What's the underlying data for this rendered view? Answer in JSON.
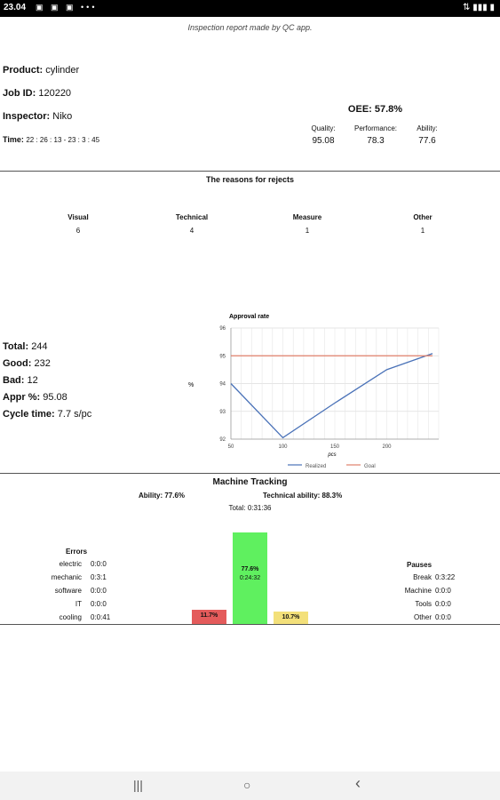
{
  "status": {
    "time": "23.04",
    "icons": "▣ ▣ ▣ •••"
  },
  "header": {
    "subtitle": "Inspection report made by QC app."
  },
  "info": [
    {
      "label": "Product:",
      "value": "cylinder"
    },
    {
      "label": "Job ID:",
      "value": "120220"
    },
    {
      "label": "Inspector:",
      "value": "Niko"
    },
    {
      "label": "Time:",
      "value": "22 : 26 : 13  -  23 : 3 : 45"
    }
  ],
  "oee": {
    "title": "OEE: 57.8%",
    "items": [
      {
        "label": "Quality:",
        "value": "95.08"
      },
      {
        "label": "Performance:",
        "value": "78.3"
      },
      {
        "label": "Ability:",
        "value": "77.6"
      }
    ]
  },
  "rejects": {
    "title": "The reasons for rejects",
    "cols": [
      {
        "label": "Visual",
        "value": "6"
      },
      {
        "label": "Technical",
        "value": "4"
      },
      {
        "label": "Measure",
        "value": "1"
      },
      {
        "label": "Other",
        "value": "1"
      }
    ]
  },
  "stats": [
    {
      "label": "Total:",
      "value": "244"
    },
    {
      "label": "Good:",
      "value": "232"
    },
    {
      "label": "Bad:",
      "value": "12"
    },
    {
      "label": "Appr %:",
      "value": "95.08"
    },
    {
      "label": "Cycle time:",
      "value": "7.7 s/pc"
    }
  ],
  "chart_data": {
    "type": "line",
    "title": "Approval rate",
    "xlabel": "pcs",
    "ylabel": "%",
    "xlim": [
      50,
      250
    ],
    "ylim": [
      92,
      96
    ],
    "xticks": [
      50,
      100,
      150,
      200
    ],
    "yticks": [
      92,
      93,
      94,
      95,
      96
    ],
    "series": [
      {
        "name": "Realized",
        "color": "#4a72b8",
        "x": [
          50,
          100,
          150,
          200,
          244
        ],
        "y": [
          94,
          92.05,
          93.3,
          94.5,
          95.08
        ]
      },
      {
        "name": "Goal",
        "color": "#e0806a",
        "x": [
          50,
          244
        ],
        "y": [
          95,
          95
        ]
      }
    ],
    "grid": true,
    "legend": "bottom"
  },
  "tracking": {
    "title": "Machine Tracking",
    "ability": "Ability: 77.6%",
    "tech_ability": "Technical ability: 88.3%",
    "total": "Total: 0:31:36",
    "errors_title": "Errors",
    "errors": [
      {
        "label": "electric",
        "value": "0:0:0"
      },
      {
        "label": "mechanic",
        "value": "0:3:1"
      },
      {
        "label": "software",
        "value": "0:0:0"
      },
      {
        "label": "IT",
        "value": "0:0:0"
      },
      {
        "label": "cooling",
        "value": "0:0:41"
      }
    ],
    "pauses_title": "Pauses",
    "pauses": [
      {
        "label": "Break",
        "value": "0:3:22"
      },
      {
        "label": "Machine",
        "value": "0:0:0"
      },
      {
        "label": "Tools",
        "value": "0:0:0"
      },
      {
        "label": "Other",
        "value": "0:0:0"
      }
    ],
    "bars": [
      {
        "label": "11.7%",
        "color": "#e45b5b",
        "pct": 11.7
      },
      {
        "label": "77.6%",
        "sub": "0:24:32",
        "color": "#5ff05f",
        "pct": 77.6
      },
      {
        "label": "10.7%",
        "color": "#f3e07a",
        "pct": 10.7
      }
    ]
  },
  "nav": {
    "recent": "|||",
    "home": "○",
    "back": "‹"
  }
}
